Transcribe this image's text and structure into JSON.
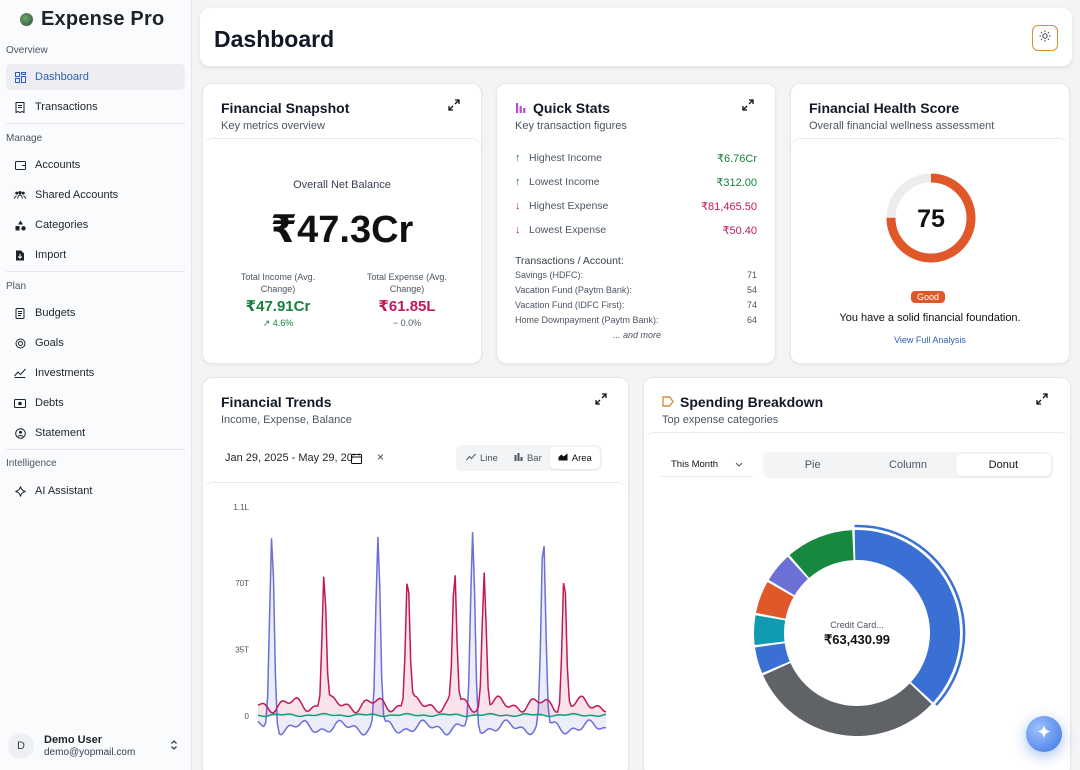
{
  "app": {
    "title": "Expense Pro"
  },
  "sidebar": {
    "sections": {
      "overview": "Overview",
      "manage": "Manage",
      "plan": "Plan",
      "intelligence": "Intelligence"
    },
    "items": [
      {
        "label": "Dashboard",
        "icon": "dashboard-icon",
        "active": true
      },
      {
        "label": "Transactions",
        "icon": "receipt-icon"
      },
      {
        "label": "Accounts",
        "icon": "wallet-icon"
      },
      {
        "label": "Shared Accounts",
        "icon": "users-icon"
      },
      {
        "label": "Categories",
        "icon": "shapes-icon"
      },
      {
        "label": "Import",
        "icon": "file-import-icon"
      },
      {
        "label": "Budgets",
        "icon": "document-icon"
      },
      {
        "label": "Goals",
        "icon": "target-icon"
      },
      {
        "label": "Investments",
        "icon": "trend-icon"
      },
      {
        "label": "Debts",
        "icon": "banknote-icon"
      },
      {
        "label": "Statement",
        "icon": "statement-icon"
      },
      {
        "label": "AI Assistant",
        "icon": "sparkle-icon"
      }
    ],
    "user": {
      "initial": "D",
      "name": "Demo User",
      "email": "demo@yopmail.com"
    }
  },
  "header": {
    "title": "Dashboard"
  },
  "snapshot": {
    "title": "Financial Snapshot",
    "subtitle": "Key metrics overview",
    "net_label": "Overall Net Balance",
    "net_value": "₹47.3Cr",
    "income_label": "Total Income (Avg. Change)",
    "income_value": "₹47.91Cr",
    "income_change": "4.6%",
    "expense_label": "Total Expense (Avg. Change)",
    "expense_value": "₹61.85L",
    "expense_change": "0.0%",
    "colors": {
      "income": "#16803c",
      "expense": "#c2185b"
    }
  },
  "quick_stats": {
    "title": "Quick Stats",
    "subtitle": "Key transaction figures",
    "rows": [
      {
        "label": "Highest Income",
        "value": "₹6.76Cr",
        "dir": "up"
      },
      {
        "label": "Lowest Income",
        "value": "₹312.00",
        "dir": "up"
      },
      {
        "label": "Highest Expense",
        "value": "₹81,465.50",
        "dir": "down"
      },
      {
        "label": "Lowest Expense",
        "value": "₹50.40",
        "dir": "down"
      }
    ],
    "accounts_heading": "Transactions / Account:",
    "accounts": [
      {
        "name": "Savings (HDFC):",
        "count": "71"
      },
      {
        "name": "Vacation Fund (Paytm Bank):",
        "count": "54"
      },
      {
        "name": "Vacation Fund (IDFC First):",
        "count": "74"
      },
      {
        "name": "Home Downpayment (Paytm Bank):",
        "count": "64"
      }
    ],
    "more": "... and more"
  },
  "health": {
    "title": "Financial Health Score",
    "subtitle": "Overall financial wellness assessment",
    "score": "75",
    "score_fraction": 0.75,
    "badge": "Good",
    "message": "You have a solid financial foundation.",
    "link": "View Full Analysis",
    "color": "#e0582a"
  },
  "trends": {
    "title": "Financial Trends",
    "subtitle": "Income, Expense, Balance",
    "date_range": "Jan 29, 2025 - May 29, 20",
    "clear": "×",
    "chart_types": [
      {
        "label": "Line",
        "icon": "line-chart-icon"
      },
      {
        "label": "Bar",
        "icon": "bar-chart-icon"
      },
      {
        "label": "Area",
        "icon": "area-chart-icon",
        "active": true
      }
    ]
  },
  "spending": {
    "title": "Spending Breakdown",
    "subtitle": "Top expense categories",
    "period": "This Month",
    "views": [
      {
        "label": "Pie"
      },
      {
        "label": "Column"
      },
      {
        "label": "Donut",
        "active": true
      }
    ]
  },
  "chart_data": [
    {
      "type": "area",
      "ylim": [
        0,
        110000
      ],
      "y_ticks": [
        "1.1L",
        "70T",
        "35T",
        "0"
      ],
      "y_tick_values": [
        110000,
        70000,
        35000,
        0
      ],
      "series": [
        {
          "color": "#6b6fd6",
          "spikes": [
            0.04,
            0.345,
            0.617,
            0.82
          ],
          "peak": 100000
        },
        {
          "color": "#c2185b",
          "spikes": [
            0.19,
            0.43,
            0.65,
            0.88,
            0.565
          ],
          "peak": 70000
        },
        {
          "color": "#0aa37f",
          "spikes": [],
          "peak": 0
        }
      ]
    },
    {
      "type": "pie",
      "variant": "donut",
      "center_label": "Credit Card...",
      "center_value": "₹63,430.99",
      "slices": [
        {
          "value": 37.5,
          "color": "#3a70d4"
        },
        {
          "value": 31.5,
          "color": "#5f6368"
        },
        {
          "value": 4.5,
          "color": "#3a70d4"
        },
        {
          "value": 5.0,
          "color": "#0f9bb0"
        },
        {
          "value": 5.5,
          "color": "#e0582a"
        },
        {
          "value": 5.0,
          "color": "#6b6fd6"
        },
        {
          "value": 11.0,
          "color": "#17893e"
        }
      ]
    }
  ]
}
